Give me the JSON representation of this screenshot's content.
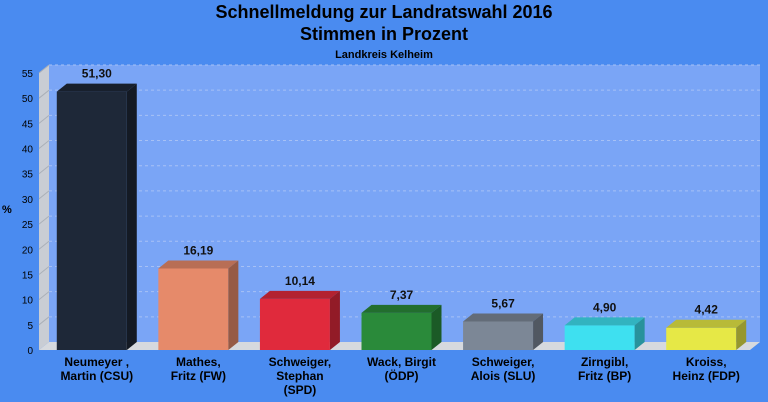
{
  "chart_data": {
    "type": "bar",
    "title": "Schnellmeldung zur Landratswahl 2016",
    "subtitle": "Stimmen in Prozent",
    "caption": "Landkreis Kelheim",
    "ylabel": "%",
    "xlabel": "",
    "ylim": [
      0,
      55
    ],
    "yticks": [
      0,
      5,
      10,
      15,
      20,
      25,
      30,
      35,
      40,
      45,
      50,
      55
    ],
    "categories": [
      [
        "Neumeyer ,",
        "Martin (CSU)"
      ],
      [
        "Mathes,",
        "Fritz (FW)"
      ],
      [
        "Schweiger,",
        "Stephan",
        "(SPD)"
      ],
      [
        "Wack, Birgit",
        "(ÖDP)"
      ],
      [
        "Schweiger,",
        "Alois (SLU)"
      ],
      [
        "Zirngibl,",
        "Fritz (BP)"
      ],
      [
        "Kroiss,",
        "Heinz (FDP)"
      ]
    ],
    "values": [
      51.3,
      16.19,
      10.14,
      7.37,
      5.67,
      4.9,
      4.42
    ],
    "value_labels": [
      "51,30",
      "16,19",
      "10,14",
      "7,37",
      "5,67",
      "4,90",
      "4,42"
    ],
    "colors": [
      "#1e2838",
      "#e68a6a",
      "#e02a3c",
      "#2a8a3a",
      "#7c8796",
      "#3ee0f0",
      "#e6e846"
    ],
    "grid": true
  }
}
